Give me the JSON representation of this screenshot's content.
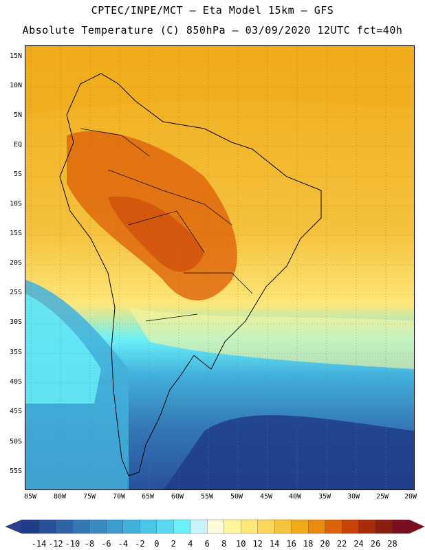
{
  "title_line1": "CPTEC/INPE/MCT –  Eta Model 15km – GFS",
  "title_line2": "Absolute Temperature (C) 850hPa – 03/09/2020 12UTC fct=40h",
  "lat_labels": [
    "15N",
    "10N",
    "5N",
    "EQ",
    "5S",
    "10S",
    "15S",
    "20S",
    "25S",
    "30S",
    "35S",
    "40S",
    "45S",
    "50S",
    "55S"
  ],
  "lon_labels": [
    "85W",
    "80W",
    "75W",
    "70W",
    "65W",
    "60W",
    "55W",
    "50W",
    "45W",
    "40W",
    "35W",
    "30W",
    "25W",
    "20W"
  ],
  "colorbar": {
    "labels": [
      "-14",
      "-12",
      "-10",
      "-8",
      "-6",
      "-4",
      "-2",
      "0",
      "2",
      "4",
      "6",
      "8",
      "10",
      "12",
      "14",
      "16",
      "18",
      "20",
      "22",
      "24",
      "26",
      "28"
    ],
    "colors": [
      "#1f3c88",
      "#28509a",
      "#2e63a8",
      "#3477b5",
      "#3a8ac2",
      "#3d9bce",
      "#43b0db",
      "#4cc6e6",
      "#5ad8ef",
      "#69f0f8",
      "#c9f3fb",
      "#fff9d9",
      "#fff59b",
      "#fee77a",
      "#fbd65c",
      "#f5c23d",
      "#f0ab1a",
      "#e88b10",
      "#dd630a",
      "#c94208",
      "#a82c0a",
      "#8a1e10",
      "#7a0d20"
    ]
  }
}
